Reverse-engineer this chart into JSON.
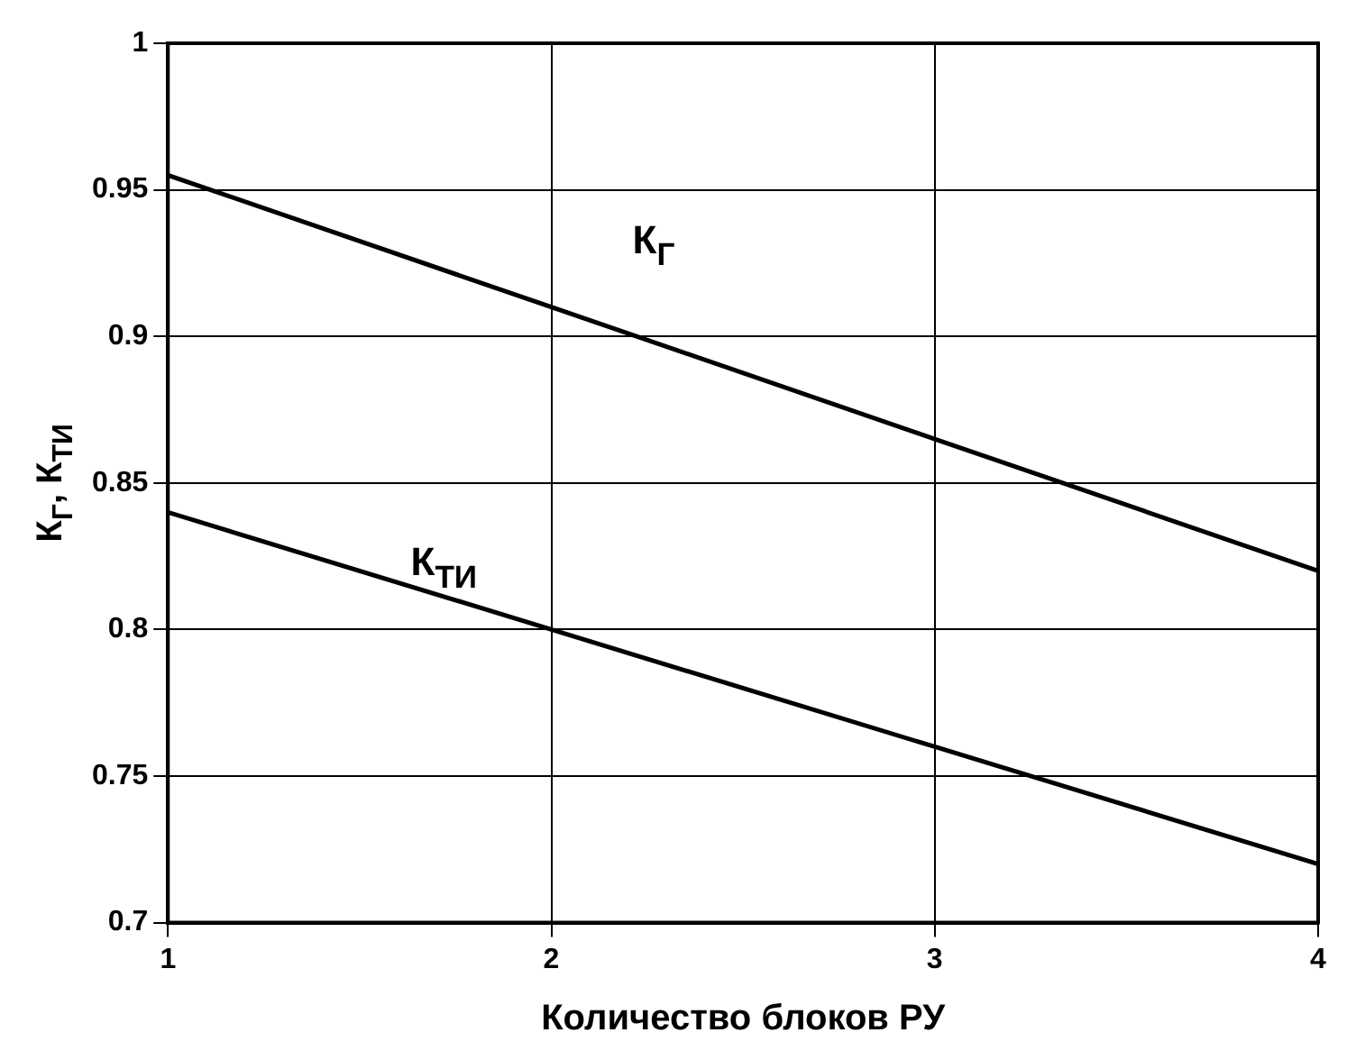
{
  "chart_data": {
    "type": "line",
    "xlabel": "Количество блоков РУ",
    "ylabel": "К$_{Г}$, К$_{ТИ}$",
    "x": [
      1,
      2,
      3,
      4
    ],
    "series": [
      {
        "name": "К$_{Г}$",
        "color": "#000000",
        "values": [
          0.955,
          0.91,
          0.865,
          0.82
        ]
      },
      {
        "name": "К$_{ТИ}$",
        "color": "#000000",
        "values": [
          0.84,
          0.8,
          0.76,
          0.72
        ]
      }
    ],
    "xlim": [
      1,
      4
    ],
    "xticks": [
      1,
      2,
      3,
      4
    ],
    "ylim": [
      0.7,
      1
    ],
    "yticks": [
      {
        "value": 0.7,
        "label": "0.7"
      },
      {
        "value": 0.75,
        "label": "0.75"
      },
      {
        "value": 0.8,
        "label": "0.8"
      },
      {
        "value": 0.85,
        "label": "0.85"
      },
      {
        "value": 0.9,
        "label": "0.9"
      },
      {
        "value": 0.95,
        "label": "0.95"
      },
      {
        "value": 1,
        "label": "1"
      }
    ],
    "grid": true,
    "legend": false,
    "marker": "none",
    "line_style": "solid"
  }
}
